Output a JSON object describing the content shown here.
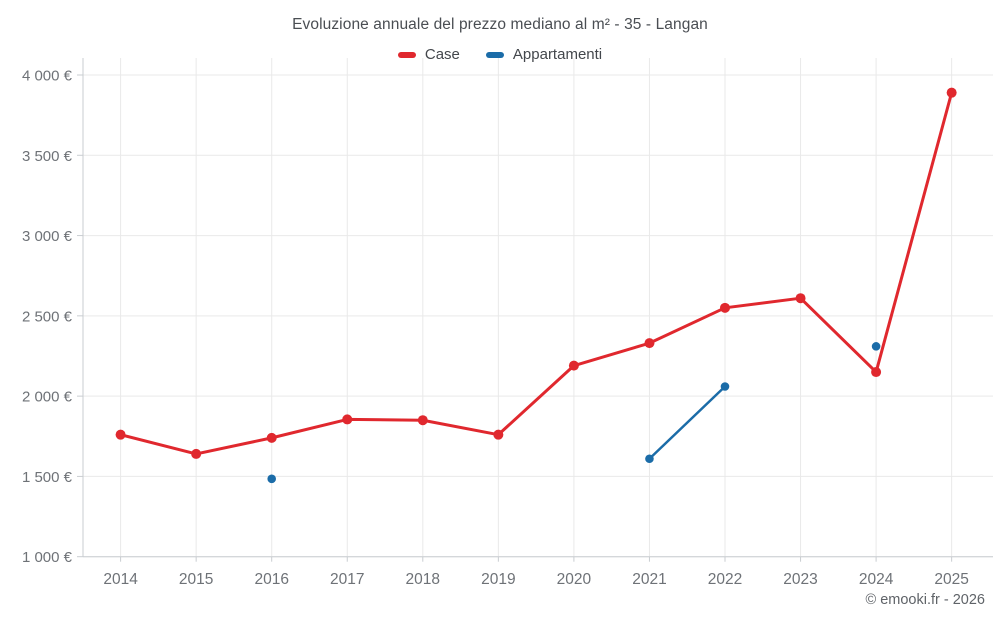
{
  "title": "Evoluzione annuale del prezzo mediano al m² - 35 - Langan",
  "footer": "© emooki.fr - 2026",
  "colors": {
    "case_red": "#e0282e",
    "appartamenti_blue": "#1b6ca8",
    "grid": "#e9e9e9",
    "axis": "#c9cdd1",
    "tick_label": "#6e7277"
  },
  "chart_data": {
    "type": "line",
    "title": "Evoluzione annuale del prezzo mediano al m² - 35 - Langan",
    "x": [
      "2014",
      "2015",
      "2016",
      "2017",
      "2018",
      "2019",
      "2020",
      "2021",
      "2022",
      "2023",
      "2024",
      "2025"
    ],
    "series": [
      {
        "name": "Case",
        "color": "#e0282e",
        "values": [
          1760,
          1640,
          1740,
          1855,
          1850,
          1760,
          2190,
          2330,
          2550,
          2610,
          2150,
          3890
        ]
      },
      {
        "name": "Appartamenti",
        "color": "#1b6ca8",
        "values": [
          null,
          null,
          1485,
          null,
          null,
          null,
          null,
          1610,
          2060,
          null,
          2310,
          null
        ]
      }
    ],
    "ylim": [
      1000,
      4000
    ],
    "ytick_values": [
      1000,
      1500,
      2000,
      2500,
      3000,
      3500,
      4000
    ],
    "ytick_labels": [
      "1 000 €",
      "1 500 €",
      "2 000 €",
      "2 500 €",
      "3 000 €",
      "3 500 €",
      "4 000 €"
    ],
    "xlabel": "",
    "ylabel": "",
    "grid": true,
    "legend_position": "top"
  }
}
